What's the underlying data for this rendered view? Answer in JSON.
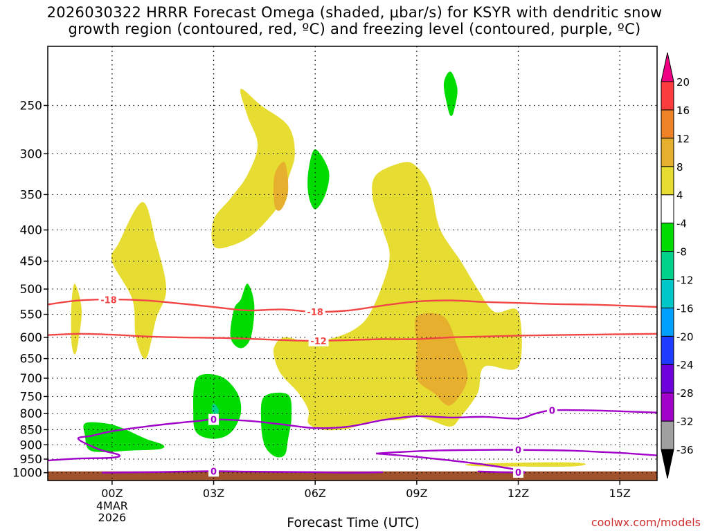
{
  "title": {
    "line1": "2026030322 HRRR Forecast Omega (shaded, μbar/s) for KSYR with dendritic snow",
    "line2": "growth region (contoured, red, ºC) and freezing level (contoured, purple, ºC)"
  },
  "source_label": "coolwx.com/models",
  "chart_data": {
    "type": "contour",
    "title": "2026030322 HRRR Forecast Omega (shaded, μbar/s) for KSYR with dendritic snow growth region (contoured, red, ºC) and freezing level (contoured, purple, ºC)",
    "xlabel": "Forecast Time (UTC)",
    "ylabel": "",
    "x_unit": "hours since 2026030400",
    "xlim": [
      -1.9,
      16.1
    ],
    "y_scale": "log-pressure",
    "ylim": [
      1030,
      200
    ],
    "y_ticks": [
      250,
      300,
      350,
      400,
      450,
      500,
      550,
      600,
      650,
      700,
      750,
      800,
      850,
      900,
      950,
      1000
    ],
    "y_tick_labels": [
      "250",
      "300",
      "350",
      "400",
      "450",
      "500",
      "550",
      "600",
      "650",
      "700",
      "750",
      "800",
      "850",
      "900",
      "950",
      "1000"
    ],
    "x_ticks": [
      0,
      3,
      6,
      9,
      12,
      15
    ],
    "x_tick_labels": [
      "00Z",
      "03Z",
      "06Z",
      "09Z",
      "12Z",
      "15Z"
    ],
    "x_date_label": [
      "4MAR",
      "2026"
    ],
    "grid": true,
    "colorbar": {
      "levels": [
        -36,
        -32,
        -28,
        -24,
        -20,
        -16,
        -12,
        -8,
        -4,
        4,
        8,
        12,
        16,
        20
      ],
      "tick_labels": [
        "-36",
        "-32",
        "-28",
        "-24",
        "-20",
        "-16",
        "-12",
        "-8",
        "-4",
        "4",
        "8",
        "12",
        "16",
        "20"
      ],
      "colors": [
        "#000000",
        "#a0a0a0",
        "#a000c8",
        "#6e00dc",
        "#1e3cff",
        "#00a0ff",
        "#00c8c8",
        "#00d28c",
        "#00dc00",
        "#ffffff",
        "#e6dc32",
        "#e6af2d",
        "#f08228",
        "#fa3c3c",
        "#f00082"
      ]
    },
    "omega_regions": [
      {
        "level": "4 to 8",
        "color": "#e6dc32",
        "points": [
          [
            -1.1,
            490
          ],
          [
            -0.9,
            540
          ],
          [
            -1.0,
            610
          ],
          [
            -1.1,
            640
          ],
          [
            -1.2,
            610
          ],
          [
            -1.2,
            530
          ]
        ]
      },
      {
        "level": "4 to 8",
        "color": "#e6dc32",
        "points": [
          [
            0.9,
            360
          ],
          [
            1.3,
            420
          ],
          [
            1.6,
            500
          ],
          [
            1.3,
            560
          ],
          [
            1.0,
            650
          ],
          [
            0.7,
            600
          ],
          [
            0.6,
            520
          ],
          [
            0.0,
            450
          ],
          [
            0.2,
            420
          ]
        ]
      },
      {
        "level": "4 to 8",
        "color": "#e6dc32",
        "points": [
          [
            3.8,
            235
          ],
          [
            4.4,
            250
          ],
          [
            5.2,
            270
          ],
          [
            5.4,
            300
          ],
          [
            5.2,
            330
          ],
          [
            5.0,
            360
          ],
          [
            4.2,
            405
          ],
          [
            3.5,
            425
          ],
          [
            3.0,
            425
          ],
          [
            3.0,
            385
          ],
          [
            3.5,
            355
          ],
          [
            4.0,
            325
          ],
          [
            4.3,
            290
          ],
          [
            4.0,
            260
          ]
        ]
      },
      {
        "level": "4 to 8",
        "color": "#e6dc32",
        "points": [
          [
            7.8,
            325
          ],
          [
            8.6,
            310
          ],
          [
            9.0,
            315
          ],
          [
            9.4,
            340
          ],
          [
            9.6,
            385
          ],
          [
            9.8,
            410
          ],
          [
            10.3,
            450
          ],
          [
            10.8,
            500
          ],
          [
            11.3,
            545
          ],
          [
            12.0,
            545
          ],
          [
            12.0,
            670
          ],
          [
            11.0,
            670
          ],
          [
            10.8,
            740
          ],
          [
            10.3,
            810
          ],
          [
            10.0,
            840
          ],
          [
            9.4,
            820
          ],
          [
            9.0,
            810
          ],
          [
            8.5,
            820
          ],
          [
            7.8,
            820
          ],
          [
            7.2,
            840
          ],
          [
            6.8,
            850
          ],
          [
            6.2,
            850
          ],
          [
            5.8,
            830
          ],
          [
            5.8,
            790
          ],
          [
            5.5,
            740
          ],
          [
            5.0,
            690
          ],
          [
            4.8,
            650
          ],
          [
            4.8,
            620
          ],
          [
            5.1,
            600
          ],
          [
            5.8,
            610
          ],
          [
            6.6,
            600
          ],
          [
            7.2,
            580
          ],
          [
            7.6,
            550
          ],
          [
            8.0,
            490
          ],
          [
            8.2,
            440
          ],
          [
            8.0,
            400
          ],
          [
            7.7,
            355
          ]
        ]
      },
      {
        "level": "4 to 8",
        "color": "#e6dc32",
        "points": [
          [
            10.5,
            968
          ],
          [
            12.0,
            963
          ],
          [
            13.5,
            962
          ],
          [
            14.0,
            968
          ],
          [
            13.5,
            977
          ],
          [
            12.0,
            977
          ],
          [
            10.8,
            976
          ]
        ]
      },
      {
        "level": "8 to 12",
        "color": "#e6af2d",
        "points": [
          [
            4.8,
            325
          ],
          [
            5.1,
            310
          ],
          [
            5.2,
            345
          ],
          [
            5.0,
            370
          ],
          [
            4.8,
            365
          ]
        ]
      },
      {
        "level": "8 to 12",
        "color": "#e6af2d",
        "points": [
          [
            9.0,
            555
          ],
          [
            9.8,
            555
          ],
          [
            10.2,
            620
          ],
          [
            10.5,
            700
          ],
          [
            10.0,
            775
          ],
          [
            9.5,
            740
          ],
          [
            9.0,
            700
          ],
          [
            9.0,
            620
          ]
        ]
      },
      {
        "level": "-8 to -4",
        "color": "#00dc00",
        "points": [
          [
            9.8,
            230
          ],
          [
            10.0,
            220
          ],
          [
            10.2,
            235
          ],
          [
            10.1,
            255
          ],
          [
            10.0,
            260
          ],
          [
            9.9,
            250
          ]
        ]
      },
      {
        "level": "-8 to -4",
        "color": "#00dc00",
        "points": [
          [
            6.0,
            295
          ],
          [
            6.4,
            320
          ],
          [
            6.3,
            350
          ],
          [
            6.0,
            370
          ],
          [
            5.8,
            350
          ],
          [
            5.8,
            320
          ]
        ]
      },
      {
        "level": "-8 to -4",
        "color": "#00dc00",
        "points": [
          [
            4.0,
            490
          ],
          [
            4.2,
            530
          ],
          [
            4.1,
            600
          ],
          [
            3.8,
            625
          ],
          [
            3.5,
            600
          ],
          [
            3.6,
            540
          ],
          [
            3.8,
            520
          ]
        ]
      },
      {
        "level": "-8 to -4",
        "color": "#00dc00",
        "points": [
          [
            2.5,
            700
          ],
          [
            3.2,
            695
          ],
          [
            3.7,
            740
          ],
          [
            3.8,
            800
          ],
          [
            3.5,
            860
          ],
          [
            3.0,
            880
          ],
          [
            2.5,
            860
          ],
          [
            2.4,
            800
          ]
        ]
      },
      {
        "level": "-8 to -4",
        "color": "#00dc00",
        "points": [
          [
            4.5,
            750
          ],
          [
            5.2,
            745
          ],
          [
            5.3,
            810
          ],
          [
            5.2,
            880
          ],
          [
            5.1,
            935
          ],
          [
            4.8,
            940
          ],
          [
            4.5,
            900
          ],
          [
            4.4,
            820
          ]
        ]
      },
      {
        "level": "-8 to -4",
        "color": "#00dc00",
        "points": [
          [
            -0.8,
            830
          ],
          [
            -0.2,
            830
          ],
          [
            0.3,
            845
          ],
          [
            1.0,
            880
          ],
          [
            1.5,
            900
          ],
          [
            1.4,
            915
          ],
          [
            0.5,
            920
          ],
          [
            -0.3,
            925
          ],
          [
            -0.7,
            915
          ],
          [
            -0.8,
            870
          ]
        ]
      },
      {
        "level": "-12 to -8",
        "color": "#00d28c",
        "points": [
          [
            3.0,
            770
          ],
          [
            3.15,
            790
          ],
          [
            3.05,
            810
          ],
          [
            2.95,
            790
          ]
        ]
      }
    ],
    "dgz_contours": [
      {
        "label": "-18",
        "color": "#f04646",
        "label_x": [
          -0.1,
          6.0
        ],
        "points": [
          [
            -1.9,
            530
          ],
          [
            -1,
            522
          ],
          [
            0,
            520
          ],
          [
            1,
            522
          ],
          [
            2,
            528
          ],
          [
            3,
            535
          ],
          [
            4,
            542
          ],
          [
            5,
            540
          ],
          [
            6,
            545
          ],
          [
            7,
            542
          ],
          [
            8,
            532
          ],
          [
            9,
            524
          ],
          [
            10,
            522
          ],
          [
            11,
            525
          ],
          [
            12,
            527
          ],
          [
            13,
            529
          ],
          [
            14,
            530
          ],
          [
            15,
            532
          ],
          [
            16.1,
            535
          ]
        ]
      },
      {
        "label": "-12",
        "color": "#f04646",
        "label_x": [
          6.1
        ],
        "points": [
          [
            -1.9,
            595
          ],
          [
            -1,
            592
          ],
          [
            0,
            594
          ],
          [
            1,
            598
          ],
          [
            2,
            600
          ],
          [
            3,
            601
          ],
          [
            4,
            603
          ],
          [
            5,
            606
          ],
          [
            6,
            608
          ],
          [
            7,
            606
          ],
          [
            8,
            604
          ],
          [
            9,
            604
          ],
          [
            10,
            600
          ],
          [
            11,
            598
          ],
          [
            12,
            596
          ],
          [
            13,
            595
          ],
          [
            14,
            594
          ],
          [
            15,
            593
          ],
          [
            16.1,
            592
          ]
        ]
      }
    ],
    "freezing_contours": [
      {
        "label": "0",
        "color": "#a000c8",
        "label_x": [
          3.0,
          13.0
        ],
        "points": [
          [
            -1.9,
            955
          ],
          [
            -1,
            948
          ],
          [
            0,
            945
          ],
          [
            0.2,
            935
          ],
          [
            -0.4,
            915
          ],
          [
            -1.0,
            880
          ],
          [
            -0.6,
            870
          ],
          [
            0,
            855
          ],
          [
            1,
            840
          ],
          [
            2,
            828
          ],
          [
            2.6,
            822
          ],
          [
            3,
            818
          ],
          [
            4,
            822
          ],
          [
            5,
            833
          ],
          [
            6,
            845
          ],
          [
            7,
            840
          ],
          [
            8,
            820
          ],
          [
            9,
            808
          ],
          [
            10,
            812
          ],
          [
            11,
            810
          ],
          [
            12,
            815
          ],
          [
            12.5,
            800
          ],
          [
            13,
            790
          ],
          [
            14,
            790
          ],
          [
            15,
            793
          ],
          [
            16.1,
            797
          ]
        ]
      },
      {
        "label": "0",
        "color": "#a000c8",
        "label_x": [
          12.0
        ],
        "points": [
          [
            7.8,
            930
          ],
          [
            8.5,
            925
          ],
          [
            9.5,
            920
          ],
          [
            10.5,
            918
          ],
          [
            11.5,
            917
          ],
          [
            12.5,
            918
          ],
          [
            13.5,
            920
          ],
          [
            14.5,
            925
          ],
          [
            15.3,
            930
          ],
          [
            16.1,
            937
          ]
        ]
      },
      {
        "label": "0",
        "color": "#a000c8",
        "label_x": [
          3.0,
          12.0
        ],
        "points": [
          [
            -0.3,
            1000
          ],
          [
            1,
            998
          ],
          [
            2,
            996
          ],
          [
            3,
            994
          ],
          [
            4,
            996
          ],
          [
            5,
            997
          ],
          [
            6,
            998
          ],
          [
            7,
            1000
          ],
          [
            8,
            998
          ]
        ]
      },
      {
        "label": "",
        "color": "#a000c8",
        "label_x": [],
        "points": [
          [
            7.8,
            930
          ],
          [
            9,
            942
          ],
          [
            10,
            955
          ],
          [
            11,
            970
          ],
          [
            12,
            990
          ],
          [
            12.2,
            1000
          ]
        ]
      },
      {
        "label": "",
        "color": "#a000c8",
        "label_x": [],
        "points": [
          [
            10.8,
            995
          ],
          [
            11.5,
            998
          ],
          [
            12.2,
            1000
          ]
        ]
      }
    ],
    "terrain": {
      "surface_pressure": 995,
      "color": "#a0522d"
    }
  }
}
